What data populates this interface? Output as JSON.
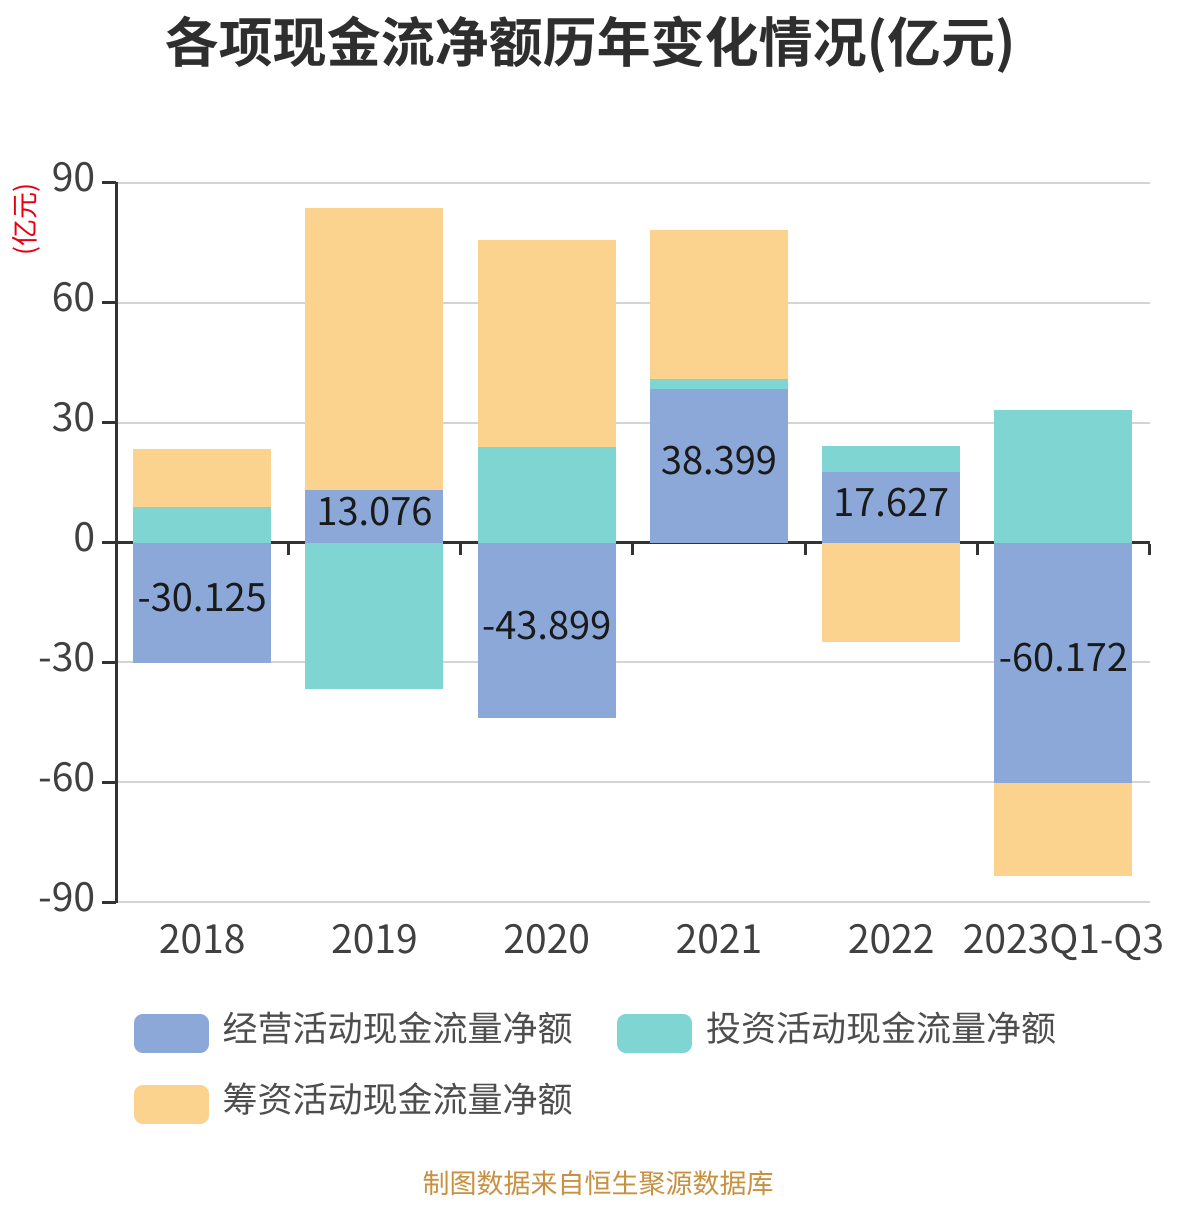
{
  "title": {
    "text": "各项现金流净额历年变化情况(亿元)"
  },
  "y_axis_name": {
    "text": "(亿元)",
    "color": "#e60012"
  },
  "chart_data": {
    "type": "bar",
    "stacked": true,
    "title": "各项现金流净额历年变化情况(亿元)",
    "categories": [
      "2018",
      "2019",
      "2020",
      "2021",
      "2022",
      "2023Q1-Q3"
    ],
    "series": [
      {
        "name": "经营活动现金流量净额",
        "color": "#8ba8d8",
        "values": [
          -30.125,
          13.076,
          -43.899,
          38.399,
          17.627,
          -60.172
        ],
        "labels": [
          "-30.125",
          "13.076",
          "-43.899",
          "38.399",
          "17.627",
          "-60.172"
        ]
      },
      {
        "name": "投资活动现金流量净额",
        "color": "#7fd5d2",
        "values": [
          8.8,
          -36.6,
          23.8,
          2.5,
          6.4,
          33.2
        ]
      },
      {
        "name": "筹资活动现金流量净额",
        "color": "#fbd28e",
        "values": [
          14.6,
          70.7,
          51.8,
          37.4,
          -24.9,
          -23.4
        ]
      }
    ],
    "ylabel": "(亿元)",
    "ylim": [
      -90,
      90
    ],
    "y_ticks": [
      90,
      60,
      30,
      0,
      -30,
      -60,
      -90
    ],
    "grid": true,
    "legend_position": "bottom",
    "value_label_series": 0
  },
  "footer": {
    "text": "制图数据来自恒生聚源数据库",
    "color": "#c79140"
  },
  "colors": {
    "axis": "#333333",
    "grid": "#d4d4d4",
    "tick_label": "#404040",
    "value_label": "#1a1a1a",
    "legend_label": "#4d4d4d",
    "background": "#ffffff"
  }
}
